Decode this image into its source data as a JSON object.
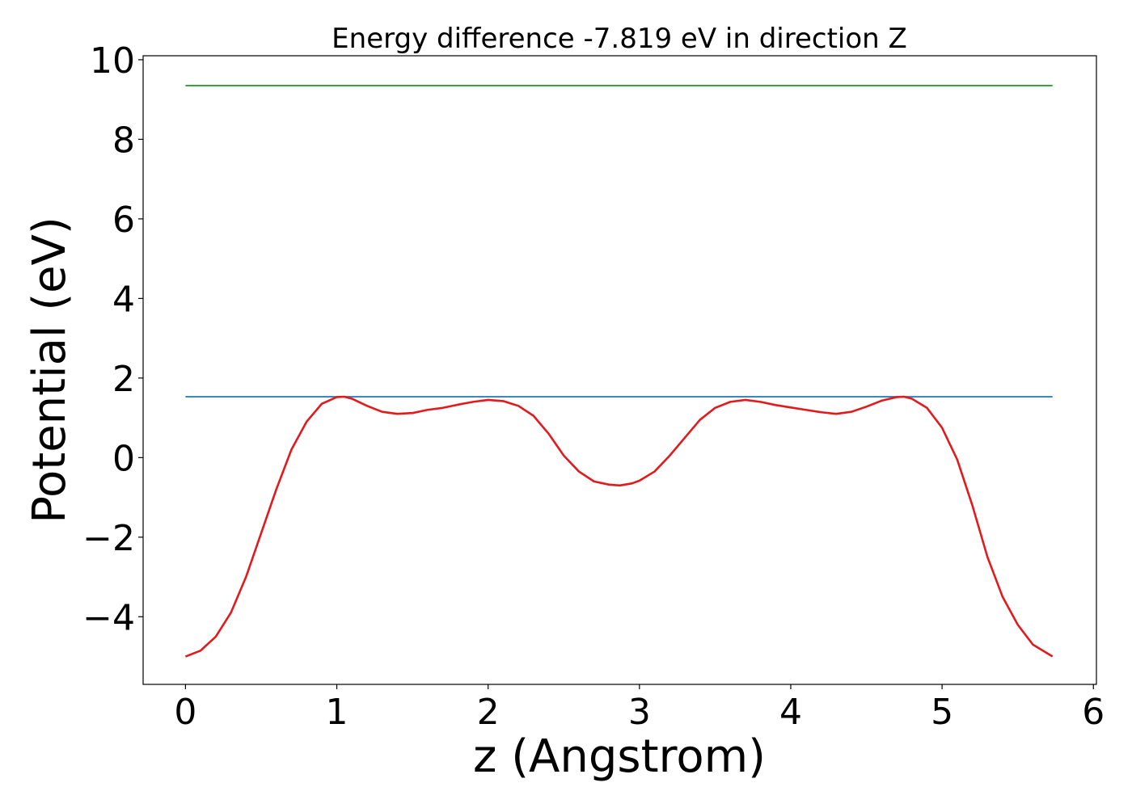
{
  "chart_data": {
    "type": "line",
    "title": "Energy difference -7.819 eV in direction Z",
    "xlabel": "z (Angstrom)",
    "ylabel": "Potential (eV)",
    "xlim": [
      -0.28,
      6.02
    ],
    "ylim": [
      -5.7,
      10.1
    ],
    "xticks": [
      0,
      1,
      2,
      3,
      4,
      5,
      6
    ],
    "xtick_labels": [
      "0",
      "1",
      "2",
      "3",
      "4",
      "5",
      "6"
    ],
    "yticks": [
      -4,
      -2,
      0,
      2,
      4,
      6,
      8,
      10
    ],
    "ytick_labels": [
      "−4",
      "−2",
      "0",
      "2",
      "4",
      "6",
      "8",
      "10"
    ],
    "grid": false,
    "legend": "none",
    "series": [
      {
        "color": "#2ca02c",
        "x": [
          0,
          5.73
        ],
        "y": [
          9.35,
          9.35
        ]
      },
      {
        "color": "#1f77b4",
        "x": [
          0,
          5.73
        ],
        "y": [
          1.53,
          1.53
        ]
      },
      {
        "color": "#e31a1c",
        "x": [
          0,
          0.1,
          0.2,
          0.3,
          0.4,
          0.5,
          0.6,
          0.7,
          0.8,
          0.9,
          1.0,
          1.05,
          1.1,
          1.2,
          1.3,
          1.4,
          1.5,
          1.6,
          1.7,
          1.8,
          1.9,
          2.0,
          2.1,
          2.2,
          2.3,
          2.4,
          2.5,
          2.6,
          2.7,
          2.8,
          2.87,
          2.95,
          3.0,
          3.1,
          3.2,
          3.3,
          3.4,
          3.5,
          3.6,
          3.7,
          3.8,
          3.9,
          4.0,
          4.1,
          4.2,
          4.3,
          4.4,
          4.5,
          4.6,
          4.7,
          4.75,
          4.8,
          4.9,
          5.0,
          5.1,
          5.2,
          5.3,
          5.4,
          5.5,
          5.6,
          5.73
        ],
        "y": [
          -5.0,
          -4.85,
          -4.5,
          -3.9,
          -3.0,
          -1.9,
          -0.8,
          0.2,
          0.9,
          1.35,
          1.52,
          1.53,
          1.48,
          1.3,
          1.15,
          1.1,
          1.12,
          1.2,
          1.25,
          1.33,
          1.4,
          1.45,
          1.42,
          1.3,
          1.05,
          0.6,
          0.05,
          -0.35,
          -0.6,
          -0.68,
          -0.7,
          -0.65,
          -0.58,
          -0.35,
          0.05,
          0.5,
          0.95,
          1.25,
          1.4,
          1.45,
          1.4,
          1.32,
          1.26,
          1.2,
          1.14,
          1.1,
          1.15,
          1.28,
          1.43,
          1.52,
          1.53,
          1.48,
          1.25,
          0.75,
          -0.05,
          -1.2,
          -2.5,
          -3.5,
          -4.2,
          -4.7,
          -5.0
        ]
      }
    ]
  }
}
